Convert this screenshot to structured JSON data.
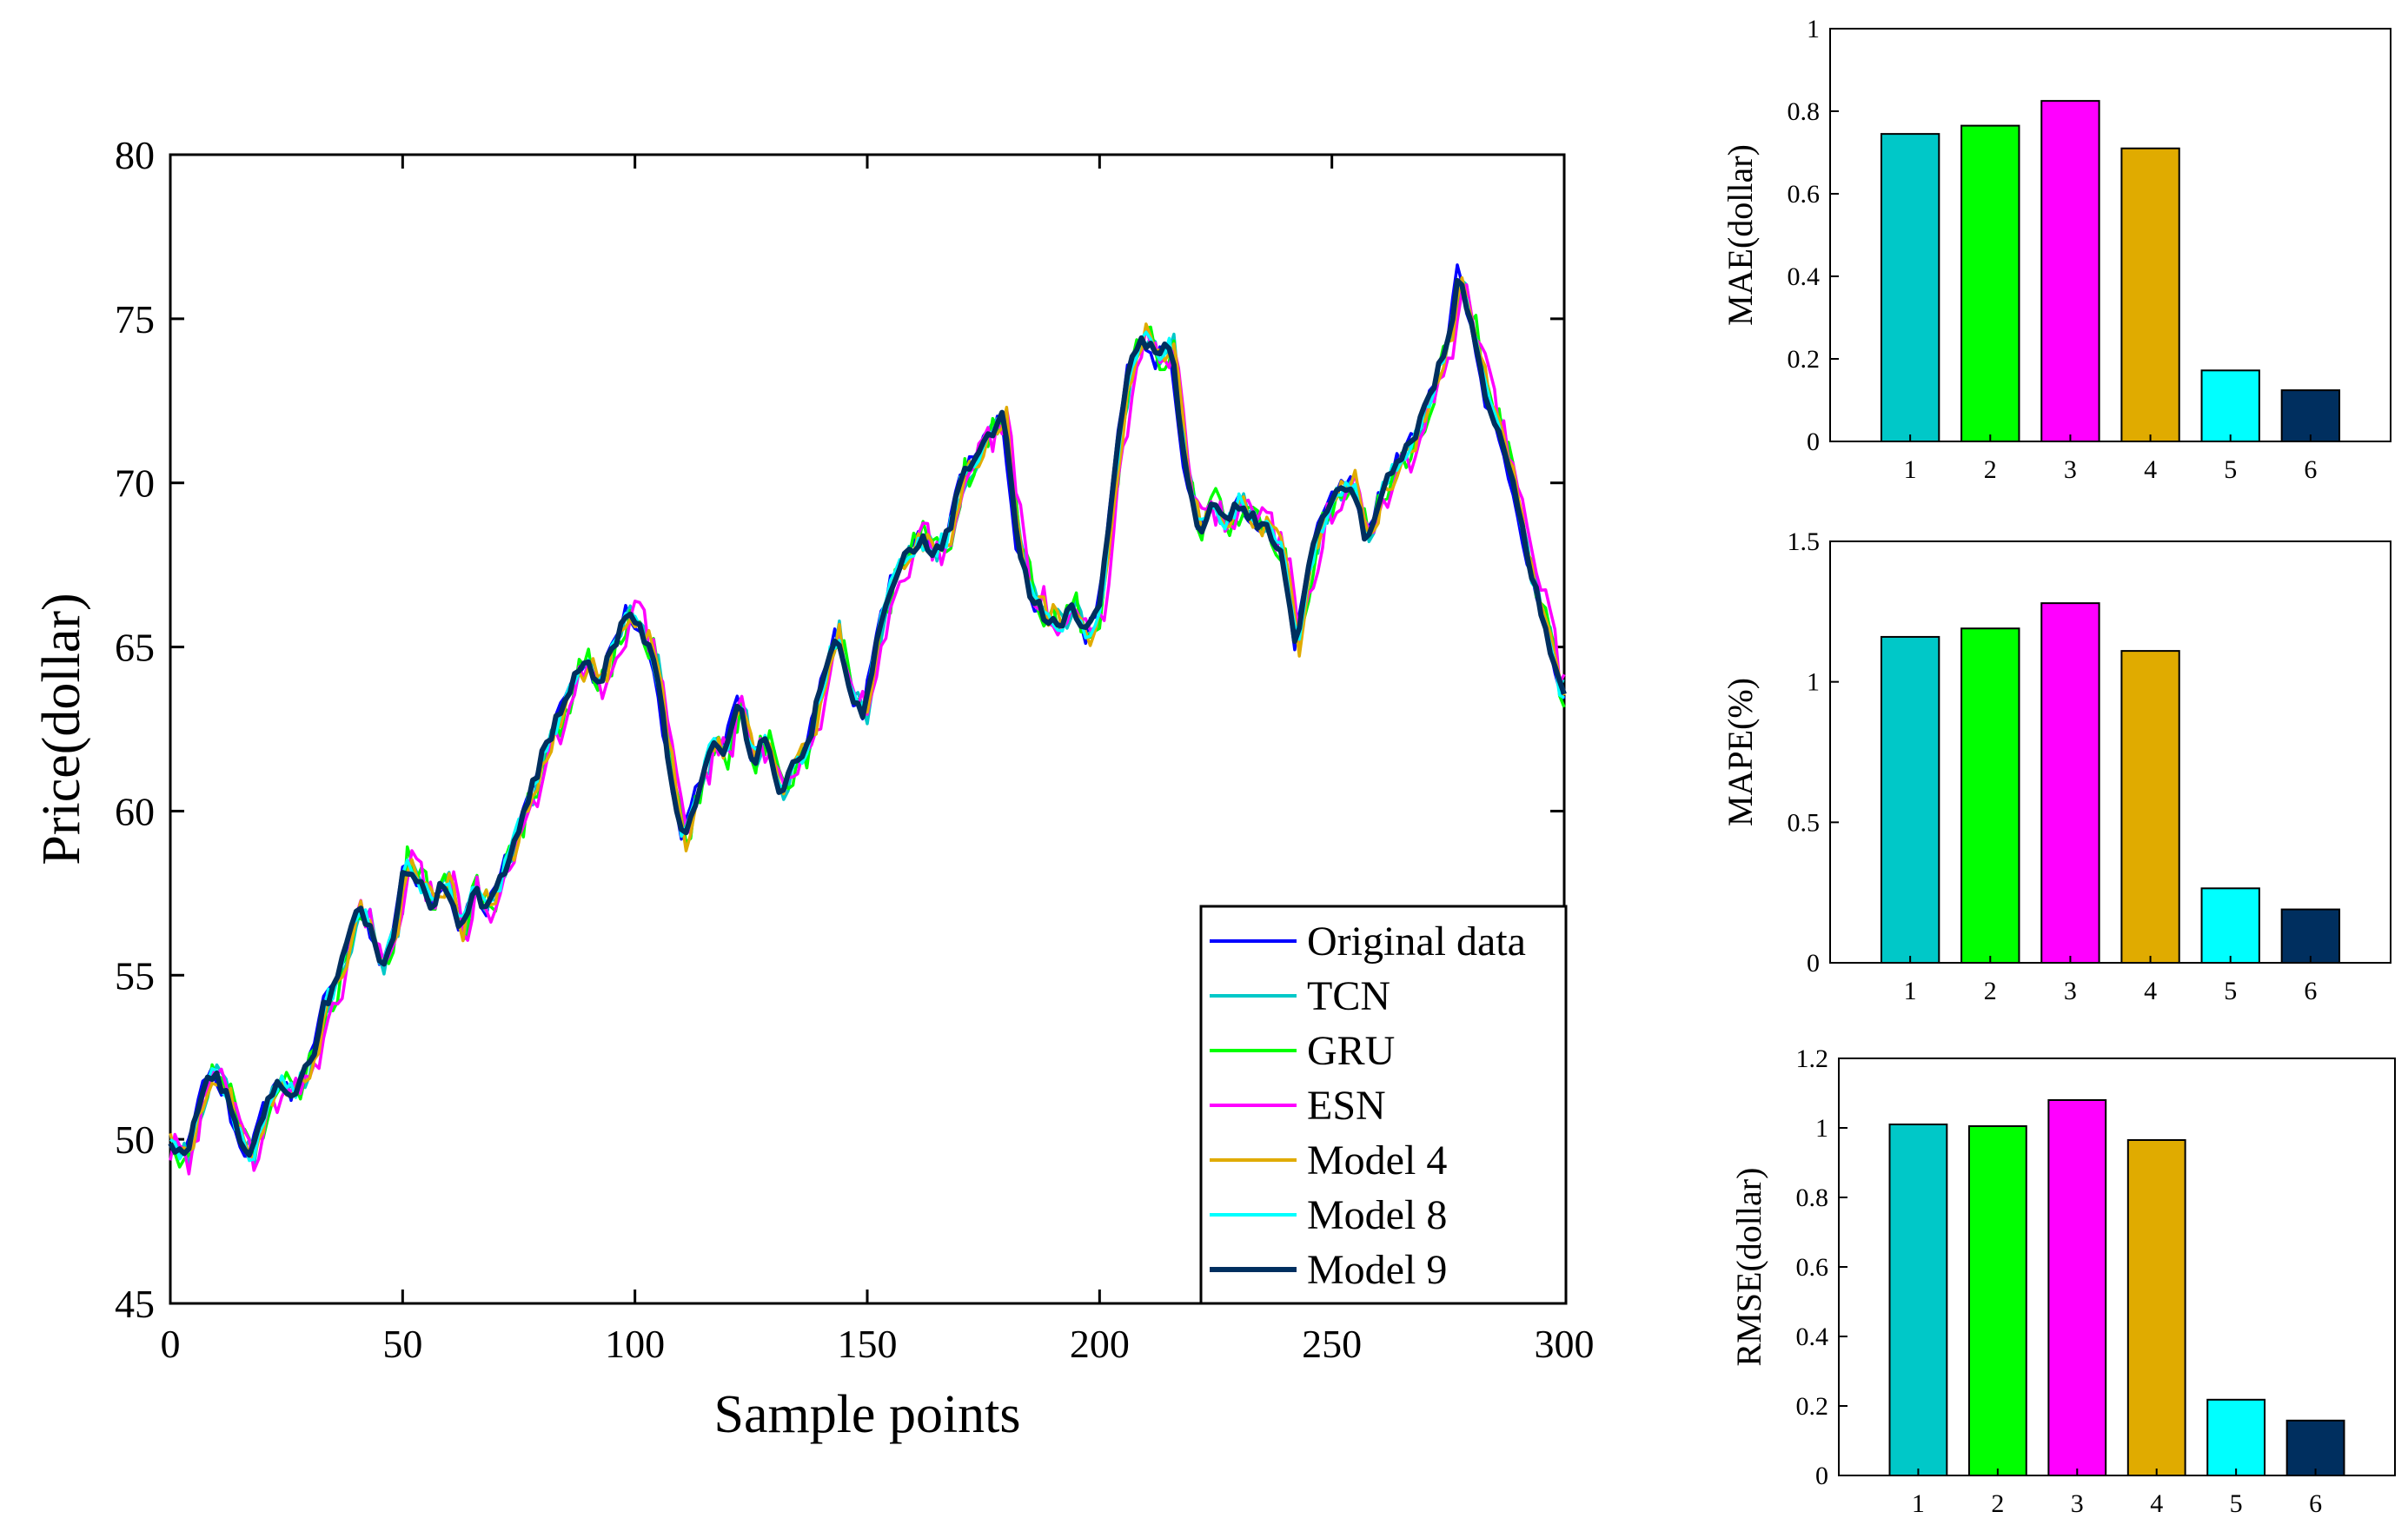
{
  "chart_data": [
    {
      "type": "line",
      "xlabel": "Sample points",
      "ylabel": "Price(dollar)",
      "xlim": [
        0,
        300
      ],
      "ylim": [
        45,
        80
      ],
      "xticks": [
        0,
        50,
        100,
        150,
        200,
        250,
        300
      ],
      "yticks": [
        45,
        50,
        55,
        60,
        65,
        70,
        75,
        80
      ],
      "legend_position": "bottom-right",
      "base_series": {
        "name": "Original data",
        "x": [
          0,
          3,
          5,
          8,
          10,
          12,
          14,
          17,
          20,
          23,
          26,
          28,
          31,
          33,
          35,
          37,
          40,
          42,
          45,
          48,
          50,
          53,
          56,
          59,
          62,
          65,
          68,
          71,
          74,
          77,
          80,
          83,
          86,
          89,
          92,
          95,
          98,
          101,
          104,
          107,
          110,
          113,
          116,
          119,
          122,
          125,
          128,
          131,
          134,
          137,
          140,
          143,
          146,
          149,
          152,
          155,
          158,
          161,
          164,
          167,
          170,
          173,
          176,
          179,
          182,
          185,
          188,
          191,
          194,
          197,
          200,
          203,
          206,
          209,
          212,
          215,
          218,
          221,
          224,
          227,
          230,
          233,
          236,
          239,
          242,
          245,
          248,
          251,
          254,
          257,
          260,
          263,
          266,
          269,
          272,
          275,
          277,
          280,
          283,
          286,
          289,
          292,
          295,
          298,
          300
        ],
        "y": [
          49.8,
          49.4,
          50.5,
          52.1,
          51.8,
          51.2,
          50.3,
          49.4,
          51.0,
          51.8,
          51.4,
          51.9,
          52.8,
          54.2,
          54.6,
          55.5,
          57.0,
          56.7,
          55.3,
          56.4,
          58.4,
          57.8,
          57.2,
          57.9,
          56.4,
          57.6,
          57.0,
          58.0,
          59.3,
          60.4,
          61.8,
          62.8,
          63.9,
          64.5,
          63.8,
          65.0,
          66.1,
          65.5,
          64.5,
          61.5,
          59.1,
          60.5,
          62.0,
          61.8,
          63.5,
          61.5,
          62.2,
          60.6,
          61.5,
          62.0,
          64.0,
          65.5,
          63.5,
          63.0,
          65.5,
          67.0,
          67.8,
          68.3,
          67.9,
          68.4,
          70.2,
          70.8,
          71.5,
          72.0,
          68.2,
          66.5,
          66.0,
          65.7,
          66.2,
          65.3,
          66.5,
          70.5,
          73.5,
          74.5,
          73.7,
          74.3,
          70.5,
          68.5,
          69.3,
          68.7,
          69.5,
          68.8,
          68.5,
          67.8,
          65.1,
          67.6,
          69.0,
          69.8,
          70.0,
          68.2,
          69.6,
          70.5,
          71.0,
          72.0,
          73.2,
          74.5,
          76.5,
          74.6,
          72.5,
          71.5,
          69.8,
          67.5,
          66.0,
          64.0,
          63.3
        ]
      },
      "series": [
        {
          "name": "Original data",
          "color": "#0000ff"
        },
        {
          "name": "TCN",
          "color": "#00c8c8"
        },
        {
          "name": "GRU",
          "color": "#00ff00"
        },
        {
          "name": "ESN",
          "color": "#ff00ff"
        },
        {
          "name": "Model 4",
          "color": "#e0ab00"
        },
        {
          "name": "Model 8",
          "color": "#00ffff"
        },
        {
          "name": "Model 9",
          "color": "#002f5f"
        }
      ]
    },
    {
      "type": "bar",
      "categories": [
        "1",
        "2",
        "3",
        "4",
        "5",
        "6"
      ],
      "values": [
        0.745,
        0.765,
        0.825,
        0.71,
        0.172,
        0.124
      ],
      "ylabel": "MAE(dollar)",
      "ylim": [
        0,
        1
      ],
      "yticks": [
        "0",
        "0.2",
        "0.4",
        "0.6",
        "0.8",
        "1"
      ],
      "colors": [
        "#00c8c8",
        "#00ff00",
        "#ff00ff",
        "#e0ab00",
        "#00ffff",
        "#002f5f"
      ]
    },
    {
      "type": "bar",
      "categories": [
        "1",
        "2",
        "3",
        "4",
        "5",
        "6"
      ],
      "values": [
        1.16,
        1.19,
        1.28,
        1.11,
        0.265,
        0.19
      ],
      "ylabel": "MAPE(%)",
      "ylim": [
        0,
        1.5
      ],
      "yticks": [
        "0",
        "0.5",
        "1",
        "1.5"
      ],
      "colors": [
        "#00c8c8",
        "#00ff00",
        "#ff00ff",
        "#e0ab00",
        "#00ffff",
        "#002f5f"
      ]
    },
    {
      "type": "bar",
      "categories": [
        "1",
        "2",
        "3",
        "4",
        "5",
        "6"
      ],
      "values": [
        1.01,
        1.005,
        1.08,
        0.965,
        0.218,
        0.158
      ],
      "ylabel": "RMSE(dollar)",
      "ylim": [
        0,
        1.2
      ],
      "yticks": [
        "0",
        "0.2",
        "0.4",
        "0.6",
        "0.8",
        "1",
        "1.2"
      ],
      "colors": [
        "#00c8c8",
        "#00ff00",
        "#ff00ff",
        "#e0ab00",
        "#00ffff",
        "#002f5f"
      ]
    }
  ]
}
